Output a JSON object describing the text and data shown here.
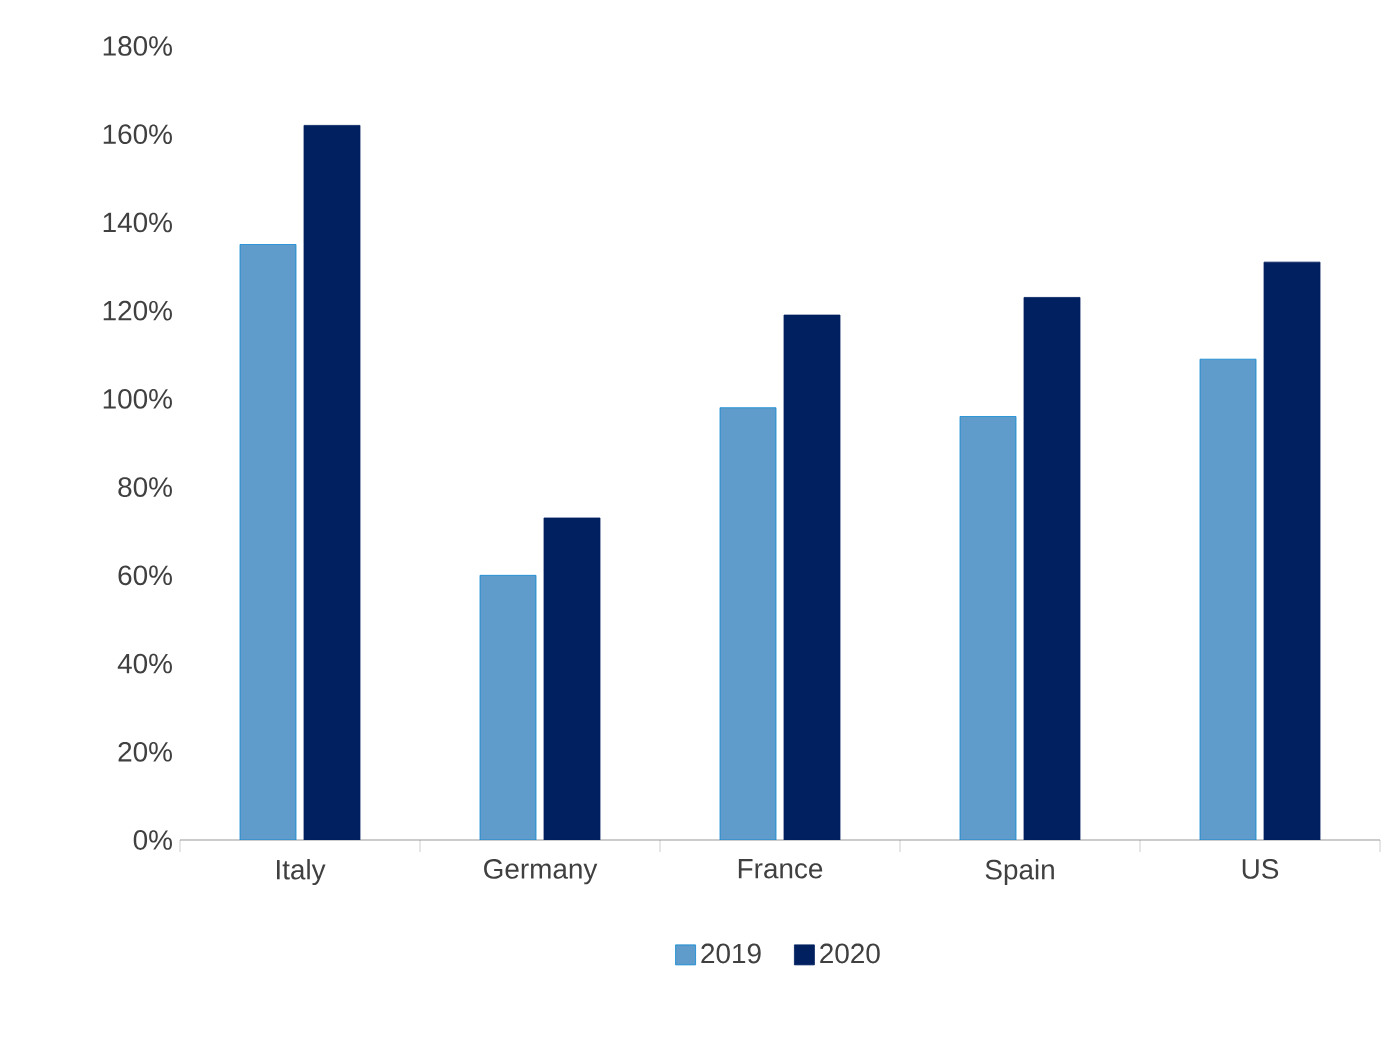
{
  "chart_data": {
    "type": "bar",
    "categories": [
      "Italy",
      "Germany",
      "France",
      "Spain",
      "US"
    ],
    "series": [
      {
        "name": "2019",
        "color": "#5f9ccb",
        "values": [
          135,
          60,
          98,
          96,
          109
        ]
      },
      {
        "name": "2020",
        "color": "#002060",
        "values": [
          162,
          73,
          119,
          123,
          131
        ]
      }
    ],
    "ylim": [
      0,
      180
    ],
    "yticks": [
      {
        "value": 0,
        "label": "0%"
      },
      {
        "value": 20,
        "label": "20%"
      },
      {
        "value": 40,
        "label": "40%"
      },
      {
        "value": 60,
        "label": "60%"
      },
      {
        "value": 80,
        "label": "80%"
      },
      {
        "value": 100,
        "label": "100%"
      },
      {
        "value": 120,
        "label": "120%"
      },
      {
        "value": 140,
        "label": "140%"
      },
      {
        "value": 160,
        "label": "160%"
      },
      {
        "value": 180,
        "label": "180%"
      }
    ],
    "grid": false,
    "legend": "bottom"
  }
}
